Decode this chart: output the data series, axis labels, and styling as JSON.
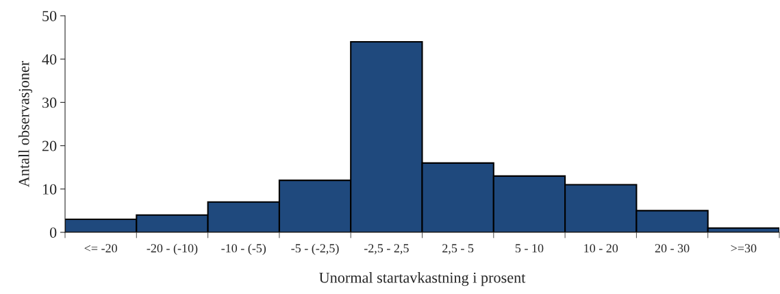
{
  "chart_data": {
    "type": "bar",
    "xlabel": "Unormal startavkastning i prosent",
    "ylabel": "Antall observasjoner",
    "categories": [
      "<= -20",
      "-20 - (-10)",
      "-10 - (-5)",
      "-5 - (-2,5)",
      "-2,5 - 2,5",
      "2,5 - 5",
      "5 - 10",
      "10 - 20",
      "20 - 30",
      ">=30"
    ],
    "values": [
      3,
      4,
      7,
      12,
      44,
      16,
      13,
      11,
      5,
      1
    ],
    "color": "#1f497d",
    "ylim": [
      0,
      50
    ],
    "yticks": [
      0,
      10,
      20,
      30,
      40,
      50
    ],
    "grid": false,
    "legend": false
  }
}
